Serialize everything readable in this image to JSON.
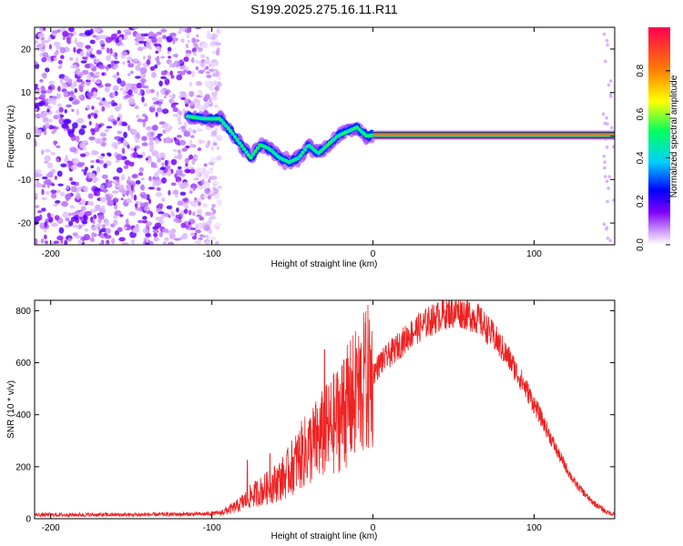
{
  "title": "S199.2025.275.16.11.R11",
  "chart_data": [
    {
      "type": "heatmap",
      "name": "spectrogram",
      "xlabel": "Height of straight line (km)",
      "ylabel": "Frequency (Hz)",
      "xlim": [
        -210,
        150
      ],
      "ylim": [
        -25,
        25
      ],
      "xticks": [
        -200,
        -100,
        0,
        100
      ],
      "yticks": [
        -20,
        -10,
        0,
        10,
        20
      ],
      "colorbar": {
        "label": "Normalized spectral amplitude",
        "range": [
          0,
          1
        ],
        "ticks": [
          0.0,
          0.2,
          0.4,
          0.6,
          0.8
        ],
        "tick_labels": [
          "0.0",
          "0.2",
          "0.4",
          "0.6",
          "0.8"
        ],
        "colors": [
          "#ffffff",
          "#c080ff",
          "#8000ff",
          "#0000ff",
          "#00d0ff",
          "#00ff60",
          "#ffff00",
          "#ff8000",
          "#ff0040"
        ]
      },
      "features": [
        {
          "desc": "noise",
          "x_range": [
            -210,
            -105
          ],
          "y_range": [
            -25,
            25
          ],
          "amplitude": 0.2
        },
        {
          "desc": "trace",
          "points": [
            [
              -115,
              4.5
            ],
            [
              -105,
              4
            ],
            [
              -95,
              4
            ],
            [
              -88,
              1
            ],
            [
              -82,
              -2
            ],
            [
              -76,
              -5
            ],
            [
              -70,
              -2
            ],
            [
              -64,
              -3
            ],
            [
              -58,
              -5
            ],
            [
              -52,
              -6
            ],
            [
              -46,
              -5
            ],
            [
              -40,
              -2
            ],
            [
              -34,
              -4
            ],
            [
              -28,
              -2
            ],
            [
              -22,
              0
            ],
            [
              -16,
              1
            ],
            [
              -10,
              2
            ],
            [
              -4,
              0
            ],
            [
              0,
              0.2
            ],
            [
              150,
              0.2
            ]
          ],
          "amplitude": 0.85
        },
        {
          "desc": "bright carrier line",
          "x_range": [
            0,
            150
          ],
          "y": 0.2,
          "amplitude": 0.95
        }
      ]
    },
    {
      "type": "line",
      "name": "snr",
      "xlabel": "Height of straight line (km)",
      "ylabel": "SNR (10 * v/v)",
      "xlim": [
        -210,
        150
      ],
      "ylim": [
        0,
        840
      ],
      "xticks": [
        -200,
        -100,
        0,
        100
      ],
      "yticks": [
        0,
        200,
        400,
        600,
        800
      ],
      "color": "#ee2222",
      "envelope": [
        [
          -210,
          15
        ],
        [
          -150,
          15
        ],
        [
          -105,
          18
        ],
        [
          -95,
          22
        ],
        [
          -85,
          45
        ],
        [
          -75,
          90
        ],
        [
          -65,
          120
        ],
        [
          -55,
          160
        ],
        [
          -45,
          240
        ],
        [
          -35,
          300
        ],
        [
          -25,
          360
        ],
        [
          -15,
          440
        ],
        [
          -5,
          520
        ],
        [
          5,
          600
        ],
        [
          15,
          660
        ],
        [
          25,
          720
        ],
        [
          35,
          760
        ],
        [
          45,
          790
        ],
        [
          55,
          795
        ],
        [
          65,
          770
        ],
        [
          75,
          700
        ],
        [
          85,
          610
        ],
        [
          95,
          500
        ],
        [
          105,
          380
        ],
        [
          115,
          250
        ],
        [
          125,
          140
        ],
        [
          135,
          70
        ],
        [
          145,
          25
        ],
        [
          150,
          18
        ]
      ],
      "spikes": [
        [
          -78,
          225
        ],
        [
          -64,
          250
        ],
        [
          -30,
          650
        ],
        [
          -18,
          610
        ],
        [
          -10,
          630
        ],
        [
          -5,
          600
        ],
        [
          5,
          640
        ],
        [
          35,
          750
        ],
        [
          52,
          815
        ],
        [
          60,
          830
        ]
      ]
    }
  ]
}
